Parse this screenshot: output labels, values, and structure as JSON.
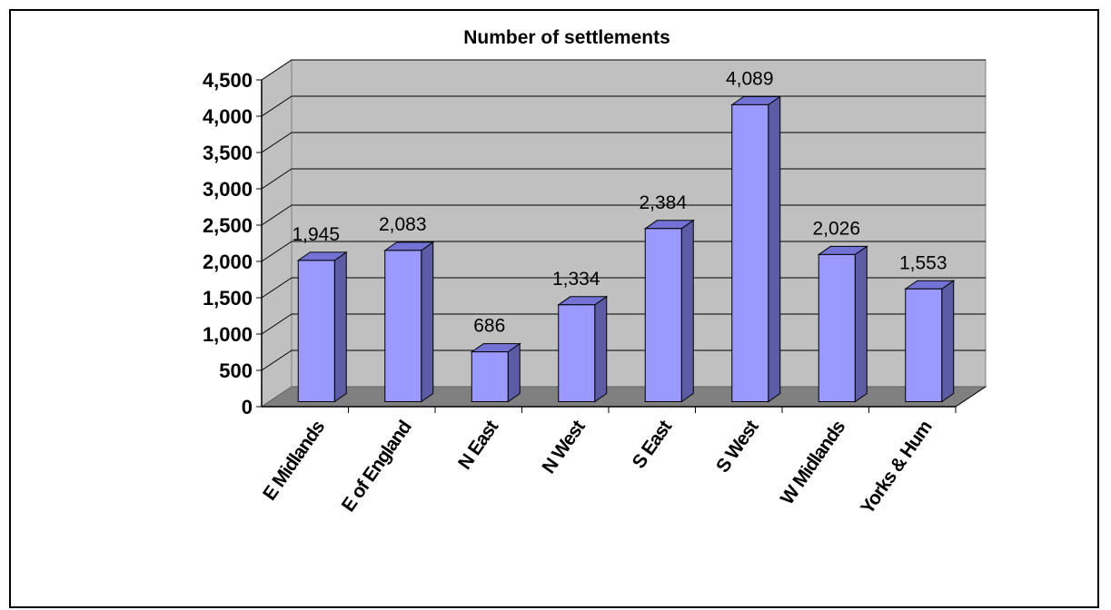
{
  "chart_data": {
    "type": "bar",
    "style": "3d-column",
    "title": "Number of settlements",
    "xlabel": "",
    "ylabel": "",
    "categories": [
      "E Midlands",
      "E of England",
      "N East",
      "N West",
      "S East",
      "S West",
      "W Midlands",
      "Yorks & Hum"
    ],
    "values": [
      1945,
      2083,
      686,
      1334,
      2384,
      4089,
      2026,
      1553
    ],
    "data_labels": [
      "1,945",
      "2,083",
      "686",
      "1,334",
      "2,384",
      "4,089",
      "2,026",
      "1,553"
    ],
    "ylim": [
      0,
      4500
    ],
    "yticks": [
      0,
      500,
      1000,
      1500,
      2000,
      2500,
      3000,
      3500,
      4000,
      4500
    ],
    "ytick_labels": [
      "0",
      "500",
      "1,000",
      "1,500",
      "2,000",
      "2,500",
      "3,000",
      "3,500",
      "4,000",
      "4,500"
    ],
    "grid": true,
    "legend": "none",
    "colors": {
      "bar_front": "#9999ff",
      "bar_side": "#5c5ca6",
      "bar_top": "#7373d6",
      "wall": "#c0c0c0",
      "floor": "#808080",
      "gridline": "#000000"
    }
  }
}
